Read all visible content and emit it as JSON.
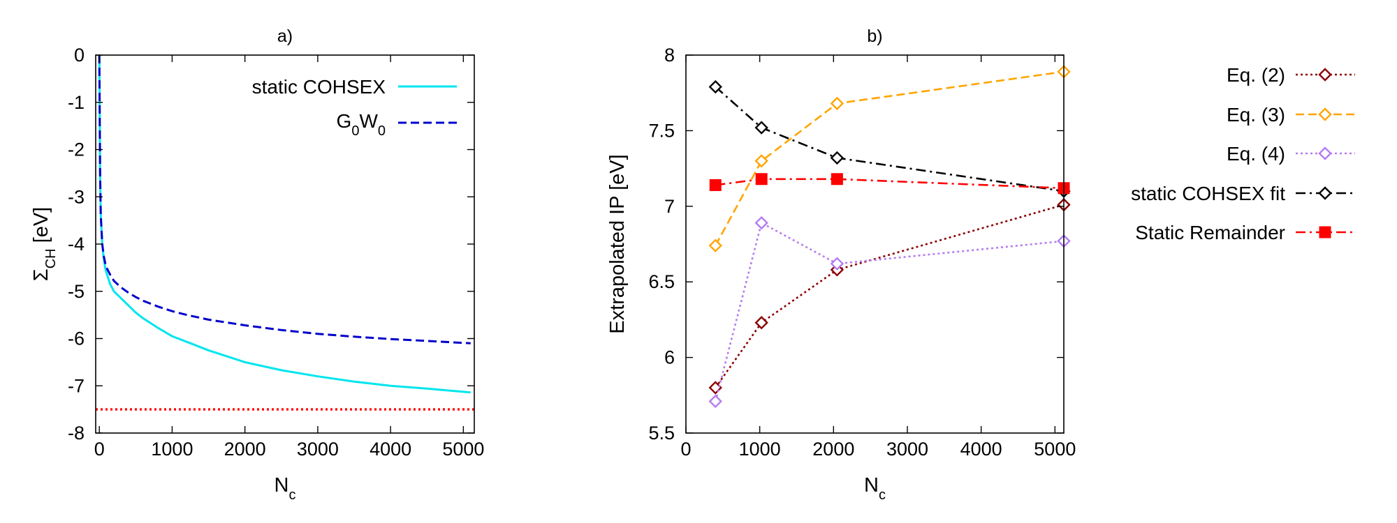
{
  "chart_data": [
    {
      "id": "a",
      "type": "line",
      "title": "a)",
      "xlabel": "N",
      "xlabel_sub": "c",
      "ylabel": "Σ",
      "ylabel_sub": "CH",
      "ylabel_unit": "[eV]",
      "xlim": [
        -50,
        5150
      ],
      "ylim": [
        -8,
        0
      ],
      "xticks": [
        0,
        1000,
        2000,
        3000,
        4000,
        5000
      ],
      "yticks": [
        0,
        -1,
        -2,
        -3,
        -4,
        -5,
        -6,
        -7,
        -8
      ],
      "legend_position": "top-right",
      "series": [
        {
          "name": "static COHSEX",
          "legend_text": "static COHSEX",
          "color": "#00e5ee",
          "dash": "solid",
          "x": [
            0,
            10,
            20,
            40,
            60,
            80,
            100,
            150,
            200,
            300,
            400,
            500,
            600,
            800,
            1000,
            1200,
            1500,
            2000,
            2500,
            3000,
            3500,
            4000,
            4500,
            5100
          ],
          "y": [
            0,
            -2.5,
            -3.4,
            -4.0,
            -4.3,
            -4.5,
            -4.62,
            -4.85,
            -5.0,
            -5.15,
            -5.3,
            -5.45,
            -5.57,
            -5.77,
            -5.95,
            -6.07,
            -6.25,
            -6.5,
            -6.67,
            -6.8,
            -6.91,
            -7.0,
            -7.06,
            -7.14
          ]
        },
        {
          "name": "G0W0",
          "legend_text": "G",
          "legend_sub1": "0",
          "legend_mid": "W",
          "legend_sub2": "0",
          "color": "#0000cc",
          "dash": "dashed",
          "x": [
            0,
            10,
            20,
            40,
            60,
            80,
            100,
            150,
            200,
            300,
            400,
            500,
            600,
            800,
            1000,
            1200,
            1500,
            2000,
            2500,
            3000,
            3500,
            4000,
            4500,
            5100
          ],
          "y": [
            0,
            -2.5,
            -3.4,
            -4.0,
            -4.25,
            -4.4,
            -4.5,
            -4.65,
            -4.78,
            -4.92,
            -5.03,
            -5.12,
            -5.2,
            -5.32,
            -5.42,
            -5.5,
            -5.6,
            -5.72,
            -5.82,
            -5.9,
            -5.96,
            -6.01,
            -6.05,
            -6.1
          ]
        },
        {
          "name": "reference",
          "color": "#ff0000",
          "dash": "dotted",
          "x": [
            -50,
            5150
          ],
          "y": [
            -7.5,
            -7.5
          ]
        }
      ]
    },
    {
      "id": "b",
      "type": "line",
      "title": "b)",
      "xlabel": "N",
      "xlabel_sub": "c",
      "ylabel": "Extrapolated IP [eV]",
      "xlim": [
        0,
        5120
      ],
      "ylim": [
        5.5,
        8
      ],
      "xticks": [
        0,
        1000,
        2000,
        3000,
        4000,
        5000
      ],
      "yticks": [
        5.5,
        6,
        6.5,
        7,
        7.5,
        8
      ],
      "legend_position": "outside-right",
      "series": [
        {
          "name": "Eq. (2)",
          "color": "#8b0000",
          "dash": "dotted",
          "marker": "diamond",
          "x": [
            400,
            1024,
            2048,
            5120
          ],
          "y": [
            5.8,
            6.23,
            6.58,
            7.01
          ]
        },
        {
          "name": "Eq. (3)",
          "color": "#ffa500",
          "dash": "dashed",
          "marker": "diamond",
          "x": [
            400,
            1024,
            2048,
            5120
          ],
          "y": [
            6.74,
            7.3,
            7.68,
            7.89
          ]
        },
        {
          "name": "Eq. (4)",
          "color": "#b47cf0",
          "dash": "dotted",
          "marker": "diamond",
          "x": [
            400,
            1024,
            2048,
            5120
          ],
          "y": [
            5.71,
            6.89,
            6.62,
            6.77
          ]
        },
        {
          "name": "static COHSEX fit",
          "color": "#000000",
          "dash": "dashdot",
          "marker": "diamond",
          "x": [
            400,
            1024,
            2048,
            5120
          ],
          "y": [
            7.79,
            7.52,
            7.32,
            7.1
          ]
        },
        {
          "name": "Static Remainder",
          "color": "#ff0000",
          "dash": "dashdot",
          "marker": "square",
          "x": [
            400,
            1024,
            2048,
            5120
          ],
          "y": [
            7.14,
            7.18,
            7.18,
            7.12
          ]
        }
      ]
    }
  ]
}
